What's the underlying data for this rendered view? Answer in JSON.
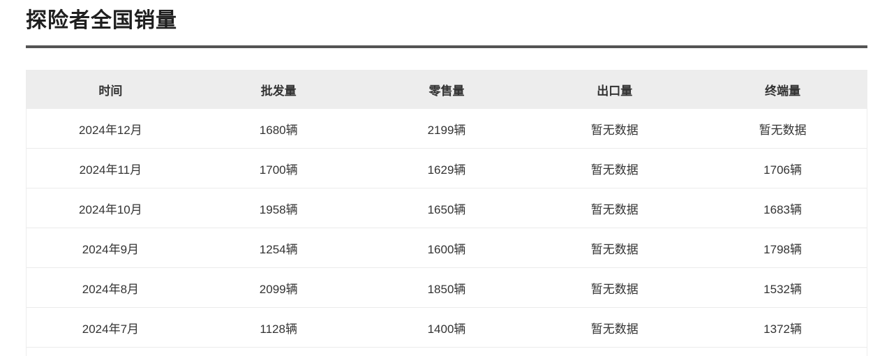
{
  "page": {
    "title": "探险者全国销量"
  },
  "table": {
    "columns": [
      "时间",
      "批发量",
      "零售量",
      "出口量",
      "终端量"
    ],
    "rows": [
      [
        "2024年12月",
        "1680辆",
        "2199辆",
        "暂无数据",
        "暂无数据"
      ],
      [
        "2024年11月",
        "1700辆",
        "1629辆",
        "暂无数据",
        "1706辆"
      ],
      [
        "2024年10月",
        "1958辆",
        "1650辆",
        "暂无数据",
        "1683辆"
      ],
      [
        "2024年9月",
        "1254辆",
        "1600辆",
        "暂无数据",
        "1798辆"
      ],
      [
        "2024年8月",
        "2099辆",
        "1850辆",
        "暂无数据",
        "1532辆"
      ],
      [
        "2024年7月",
        "1128辆",
        "1400辆",
        "暂无数据",
        "1372辆"
      ]
    ],
    "no_data_text": "暂无数据"
  },
  "colors": {
    "title_text": "#1f1f1f",
    "divider": "#545454",
    "header_bg": "#ededed",
    "cell_text": "#333333",
    "row_border": "#ebebeb",
    "background": "#ffffff"
  }
}
